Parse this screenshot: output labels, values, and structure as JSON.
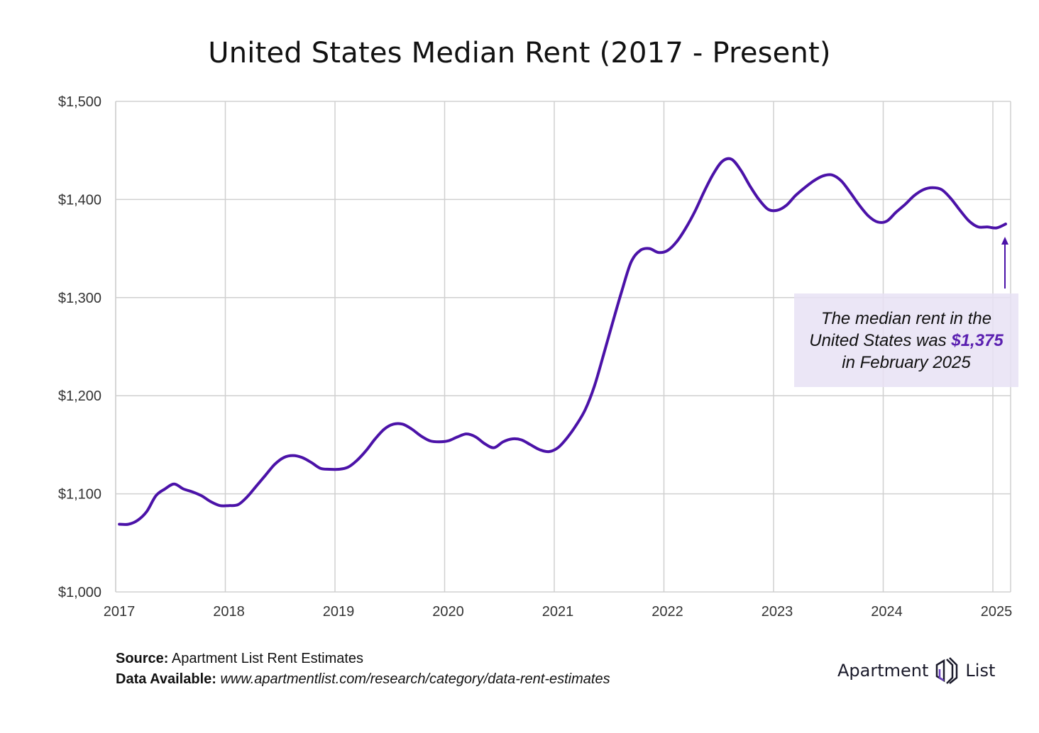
{
  "chart_data": {
    "type": "line",
    "title": "United States Median Rent (2017 - Present)",
    "xlabel": "",
    "ylabel": "",
    "xlim": [
      2017,
      2025.16
    ],
    "ylim": [
      1000,
      1500
    ],
    "x_ticks": [
      "2017",
      "2018",
      "2019",
      "2020",
      "2021",
      "2022",
      "2023",
      "2024",
      "2025"
    ],
    "y_ticks": [
      "$1,000",
      "$1,100",
      "$1,200",
      "$1,300",
      "$1,400",
      "$1,500"
    ],
    "grid": true,
    "line_color": "#4b12a8",
    "series": [
      {
        "start": "2017-01",
        "frequency": "monthly",
        "values": [
          1069,
          1069,
          1073,
          1082,
          1098,
          1105,
          1110,
          1105,
          1102,
          1098,
          1092,
          1088,
          1088,
          1089,
          1097,
          1108,
          1119,
          1130,
          1137,
          1139,
          1137,
          1132,
          1126,
          1125,
          1125,
          1127,
          1134,
          1144,
          1156,
          1166,
          1171,
          1171,
          1166,
          1159,
          1154,
          1153,
          1154,
          1158,
          1161,
          1158,
          1151,
          1147,
          1153,
          1156,
          1155,
          1150,
          1145,
          1143,
          1147,
          1157,
          1170,
          1186,
          1210,
          1242,
          1275,
          1307,
          1336,
          1348,
          1350,
          1346,
          1348,
          1357,
          1371,
          1388,
          1408,
          1426,
          1439,
          1441,
          1430,
          1414,
          1400,
          1390,
          1389,
          1394,
          1404,
          1412,
          1419,
          1424,
          1425,
          1419,
          1407,
          1394,
          1383,
          1377,
          1378,
          1387,
          1395,
          1404,
          1410,
          1412,
          1410,
          1401,
          1389,
          1378,
          1372,
          1372,
          1371,
          1375
        ]
      }
    ],
    "annotation": {
      "line1": "The median rent in the",
      "line2_prefix": "United States was ",
      "line2_value": "$1,375",
      "line3": "in February 2025",
      "accent_color": "#5a1fb0"
    }
  },
  "footer": {
    "source_label": "Source:",
    "source_value": "Apartment List Rent Estimates",
    "data_label": "Data Available:",
    "data_value": "www.apartmentlist.com/research/category/data-rent-estimates"
  },
  "logo": {
    "left": "Apartment",
    "right": "List"
  }
}
